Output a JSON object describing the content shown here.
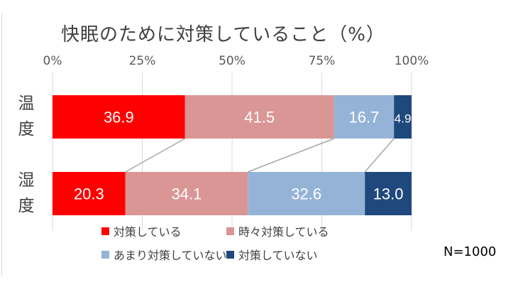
{
  "chart_data": {
    "type": "bar",
    "orientation": "horizontal",
    "stacked": true,
    "title": "快眠のために対策していること（%）",
    "categories": [
      "温度",
      "湿度"
    ],
    "series": [
      {
        "name": "対策している",
        "color": "#ff0000",
        "values": [
          36.9,
          20.3
        ]
      },
      {
        "name": "時々対策している",
        "color": "#d99694",
        "values": [
          41.5,
          34.1
        ]
      },
      {
        "name": "あまり対策していない",
        "color": "#95b3d7",
        "values": [
          16.7,
          32.6
        ]
      },
      {
        "name": "対策していない",
        "color": "#1f497d",
        "values": [
          4.9,
          13.0
        ]
      }
    ],
    "data_labels": [
      [
        "36.9",
        "41.5",
        "16.7",
        "4.9"
      ],
      [
        "20.3",
        "34.1",
        "32.6",
        "13.0"
      ]
    ],
    "xlim": [
      0,
      100
    ],
    "xticks": [
      "0%",
      "25%",
      "50%",
      "75%",
      "100%"
    ],
    "grid": true,
    "legend_position": "bottom"
  },
  "note": "N=1000"
}
